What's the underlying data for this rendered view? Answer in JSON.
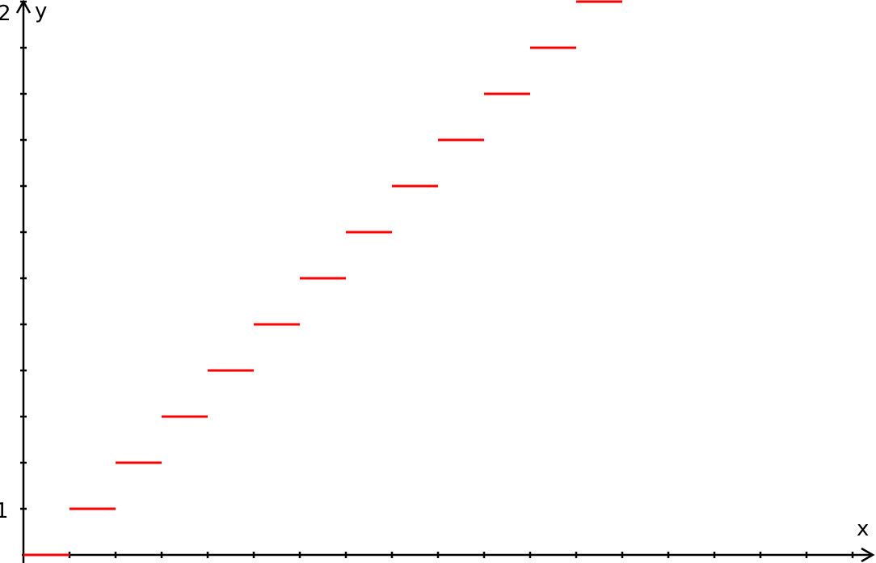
{
  "chart_data": {
    "type": "line",
    "title": "",
    "xlabel": "x",
    "ylabel": "y",
    "ytick_labels": [
      {
        "value": 1,
        "label": "1"
      },
      {
        "value": 2,
        "label": "2"
      }
    ],
    "xlim": [
      0,
      18.5
    ],
    "ylim": [
      0,
      12
    ],
    "grid": false,
    "series": [
      {
        "color": "#ff0000",
        "style": "horizontal-steps",
        "segments": [
          {
            "x_start": 0,
            "x_end": 1,
            "y": 0
          },
          {
            "x_start": 1,
            "x_end": 2,
            "y": 1
          },
          {
            "x_start": 2,
            "x_end": 3,
            "y": 2
          },
          {
            "x_start": 3,
            "x_end": 4,
            "y": 3
          },
          {
            "x_start": 4,
            "x_end": 5,
            "y": 4
          },
          {
            "x_start": 5,
            "x_end": 6,
            "y": 5
          },
          {
            "x_start": 6,
            "x_end": 7,
            "y": 6
          },
          {
            "x_start": 7,
            "x_end": 8,
            "y": 7
          },
          {
            "x_start": 8,
            "x_end": 9,
            "y": 8
          },
          {
            "x_start": 9,
            "x_end": 10,
            "y": 9
          },
          {
            "x_start": 10,
            "x_end": 11,
            "y": 10
          },
          {
            "x_start": 11,
            "x_end": 12,
            "y": 11
          },
          {
            "x_start": 12,
            "x_end": 13,
            "y": 12
          }
        ]
      }
    ],
    "axis_color": "#000000"
  }
}
